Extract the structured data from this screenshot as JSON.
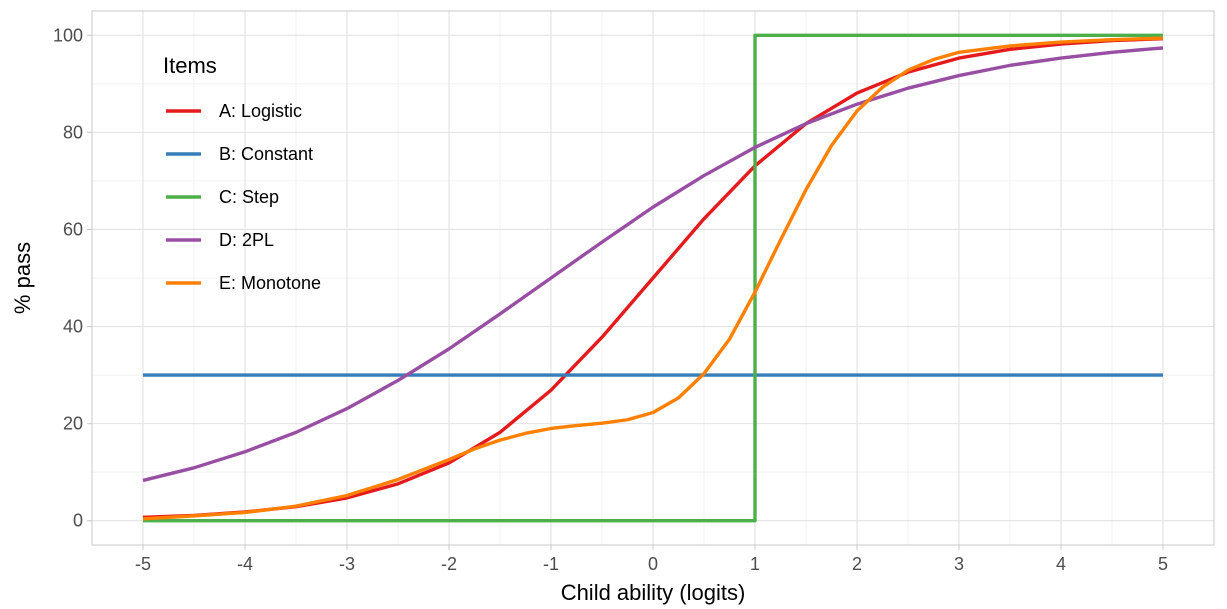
{
  "chart_data": {
    "type": "line",
    "title": "",
    "xlabel": "Child ability (logits)",
    "ylabel": "% pass",
    "xlim": [
      -5.5,
      5.5
    ],
    "ylim": [
      -5,
      105
    ],
    "x_ticks": [
      -5,
      -4,
      -3,
      -2,
      -1,
      0,
      1,
      2,
      3,
      4,
      5
    ],
    "x_tick_labels": [
      "-5",
      "-4",
      "-3",
      "-2",
      "-1",
      "0",
      "1",
      "2",
      "3",
      "4",
      "5"
    ],
    "y_ticks": [
      0,
      20,
      40,
      60,
      80,
      100
    ],
    "y_tick_labels": [
      "0",
      "20",
      "40",
      "60",
      "80",
      "100"
    ],
    "grid": true,
    "legend": {
      "title": "Items",
      "position": "top-left inside"
    },
    "series": [
      {
        "name": "A: Logistic",
        "color": "#e41a1c",
        "x": [
          -5,
          -4.5,
          -4,
          -3.5,
          -3,
          -2.5,
          -2,
          -1.5,
          -1,
          -0.5,
          0,
          0.5,
          1,
          1.5,
          2,
          2.5,
          3,
          3.5,
          4,
          4.5,
          5
        ],
        "y": [
          0.7,
          1.1,
          1.8,
          2.9,
          4.7,
          7.6,
          11.9,
          18.2,
          26.9,
          37.8,
          50,
          62.2,
          73.1,
          81.8,
          88.1,
          92.4,
          95.3,
          97.1,
          98.2,
          98.9,
          99.3
        ]
      },
      {
        "name": "B: Constant",
        "color": "#377eb8",
        "x": [
          -5,
          5
        ],
        "y": [
          30,
          30
        ]
      },
      {
        "name": "C: Step",
        "color": "#4daf4a",
        "x": [
          -5,
          1,
          1,
          5
        ],
        "y": [
          0,
          0,
          100,
          100
        ]
      },
      {
        "name": "D: 2PL",
        "color": "#984ea3",
        "x": [
          -5,
          -4.5,
          -4,
          -3.5,
          -3,
          -2.5,
          -2,
          -1.5,
          -1,
          -0.5,
          0,
          0.5,
          1,
          1.5,
          2,
          2.5,
          3,
          3.5,
          4,
          4.5,
          5
        ],
        "y": [
          8.3,
          10.9,
          14.2,
          18.2,
          23.1,
          28.9,
          35.4,
          42.6,
          50,
          57.4,
          64.6,
          71.1,
          76.9,
          81.8,
          85.8,
          89.1,
          91.7,
          93.8,
          95.3,
          96.5,
          97.4
        ]
      },
      {
        "name": "E: Monotone",
        "color": "#ff7f00",
        "x": [
          -5,
          -4.5,
          -4,
          -3.5,
          -3,
          -2.5,
          -2,
          -1.75,
          -1.5,
          -1.25,
          -1,
          -0.75,
          -0.5,
          -0.25,
          0,
          0.25,
          0.5,
          0.75,
          1,
          1.25,
          1.5,
          1.75,
          2,
          2.25,
          2.5,
          2.75,
          3,
          3.5,
          4,
          4.5,
          5
        ],
        "y": [
          0.4,
          1,
          1.7,
          3,
          5.2,
          8.5,
          12.6,
          14.8,
          16.6,
          18,
          19,
          19.6,
          20.1,
          20.8,
          22.3,
          25.3,
          30.3,
          37.4,
          47.1,
          57.8,
          68.2,
          77.3,
          84.4,
          89.3,
          92.8,
          95,
          96.5,
          97.8,
          98.6,
          99.1,
          99.4
        ]
      }
    ]
  }
}
